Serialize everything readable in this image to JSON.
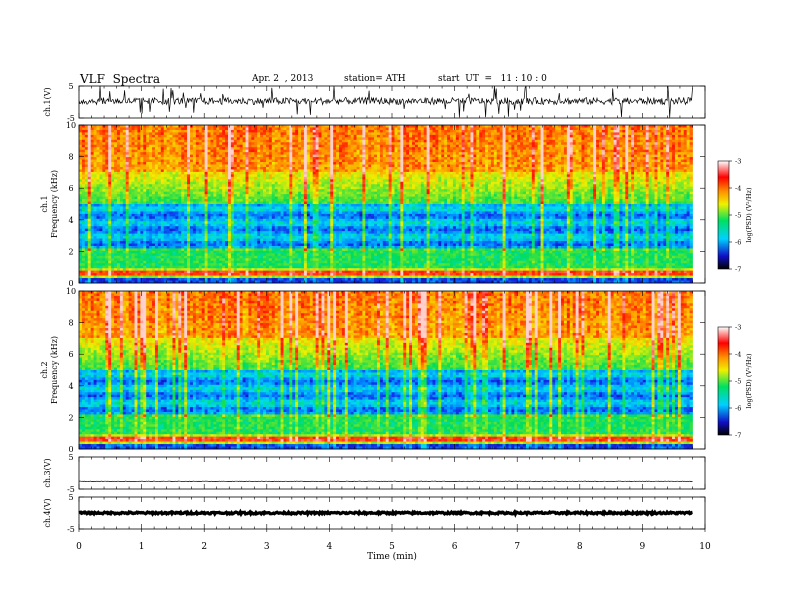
{
  "header": {
    "title": "VLF  Spectra",
    "date": "Apr. 2  , 2013",
    "station": "station= ATH",
    "start": "start  UT  =   11 : 10 : 0"
  },
  "chart_data": [
    {
      "name": "ch1-waveform",
      "type": "line",
      "ylabel": "ch.1(V)",
      "ylim": [
        -5,
        5
      ],
      "yticks": [
        "5",
        "-5"
      ],
      "xlim": [
        0,
        10
      ]
    },
    {
      "name": "ch1-spectrogram",
      "type": "heatmap",
      "ylabel": "ch.1\nFrequency  (kHz)",
      "ylabel_channel": "ch.1",
      "ylabel_freq": "Frequency  (kHz)",
      "ylim": [
        0,
        10
      ],
      "yticks": [
        "0",
        "2",
        "4",
        "6",
        "8",
        "10"
      ],
      "xlim": [
        0,
        10
      ],
      "data_end_min": 9.8,
      "colorbar": {
        "label": "log(PSD) (V²/Hz)",
        "range": [
          -7,
          -3
        ],
        "ticks": [
          "-3",
          "-4",
          "-5",
          "-6",
          "-7"
        ]
      }
    },
    {
      "name": "ch2-spectrogram",
      "type": "heatmap",
      "ylabel": "ch.2\nFrequency  (kHz)",
      "ylabel_channel": "ch.2",
      "ylabel_freq": "Frequency  (kHz)",
      "ylim": [
        0,
        10
      ],
      "yticks": [
        "0",
        "2",
        "4",
        "6",
        "8",
        "10"
      ],
      "xlim": [
        0,
        10
      ],
      "data_end_min": 9.8,
      "colorbar": {
        "label": "log(PSD) (V²/Hz)",
        "range": [
          -7,
          -3
        ],
        "ticks": [
          "-3",
          "-4",
          "-5",
          "-6",
          "-7"
        ]
      }
    },
    {
      "name": "ch3-waveform",
      "type": "line",
      "ylabel": "ch.3(V)",
      "ylim": [
        -5,
        5
      ],
      "yticks": [
        "5",
        "-5"
      ],
      "xlim": [
        0,
        10
      ]
    },
    {
      "name": "ch4-waveform",
      "type": "line",
      "ylabel": "ch.4(V)",
      "ylim": [
        -5,
        5
      ],
      "yticks": [
        "5",
        "-5"
      ],
      "xlim": [
        0,
        10
      ]
    }
  ],
  "xaxis": {
    "label": "Time  (min)",
    "ticks": [
      "0",
      "1",
      "2",
      "3",
      "4",
      "5",
      "6",
      "7",
      "8",
      "9",
      "10"
    ]
  }
}
